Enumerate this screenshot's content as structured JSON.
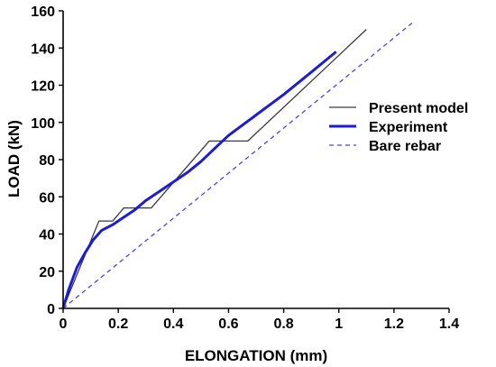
{
  "chart_data": {
    "type": "line",
    "xlabel": "ELONGATION (mm)",
    "ylabel": "LOAD (kN)",
    "xlim": [
      0,
      1.4
    ],
    "ylim": [
      0,
      160
    ],
    "x_ticks": [
      0,
      0.2,
      0.4,
      0.6,
      0.8,
      1,
      1.2,
      1.4
    ],
    "y_ticks": [
      0,
      20,
      40,
      60,
      80,
      100,
      120,
      140,
      160
    ],
    "x_tick_labels": [
      "0",
      "0.2",
      "0.4",
      "0.6",
      "0.8",
      "1",
      "1.2",
      "1.4"
    ],
    "y_tick_labels": [
      "0",
      "20",
      "40",
      "60",
      "80",
      "100",
      "120",
      "140",
      "160"
    ],
    "grid": false,
    "legend_position": "right",
    "series": [
      {
        "name": "Present model",
        "color": "#3a3a3a",
        "style": "solid",
        "width": "thin",
        "points": [
          [
            0,
            0
          ],
          [
            0.13,
            47
          ],
          [
            0.18,
            47
          ],
          [
            0.22,
            54
          ],
          [
            0.32,
            54
          ],
          [
            0.53,
            90
          ],
          [
            0.67,
            90
          ],
          [
            1.1,
            150
          ]
        ]
      },
      {
        "name": "Experiment",
        "color": "#1c1cd6",
        "style": "solid",
        "width": "thick",
        "points": [
          [
            0,
            0
          ],
          [
            0.02,
            10
          ],
          [
            0.05,
            22
          ],
          [
            0.08,
            30
          ],
          [
            0.11,
            37
          ],
          [
            0.14,
            42
          ],
          [
            0.18,
            45
          ],
          [
            0.22,
            49
          ],
          [
            0.26,
            53
          ],
          [
            0.3,
            58
          ],
          [
            0.35,
            63
          ],
          [
            0.4,
            68
          ],
          [
            0.45,
            73
          ],
          [
            0.5,
            79
          ],
          [
            0.55,
            86
          ],
          [
            0.6,
            93
          ],
          [
            0.7,
            104
          ],
          [
            0.8,
            115
          ],
          [
            0.9,
            127
          ],
          [
            0.99,
            138
          ]
        ]
      },
      {
        "name": "Bare rebar",
        "color": "#4747d1",
        "style": "dashed",
        "width": "thin",
        "points": [
          [
            0,
            0
          ],
          [
            1.27,
            154
          ]
        ]
      }
    ]
  }
}
